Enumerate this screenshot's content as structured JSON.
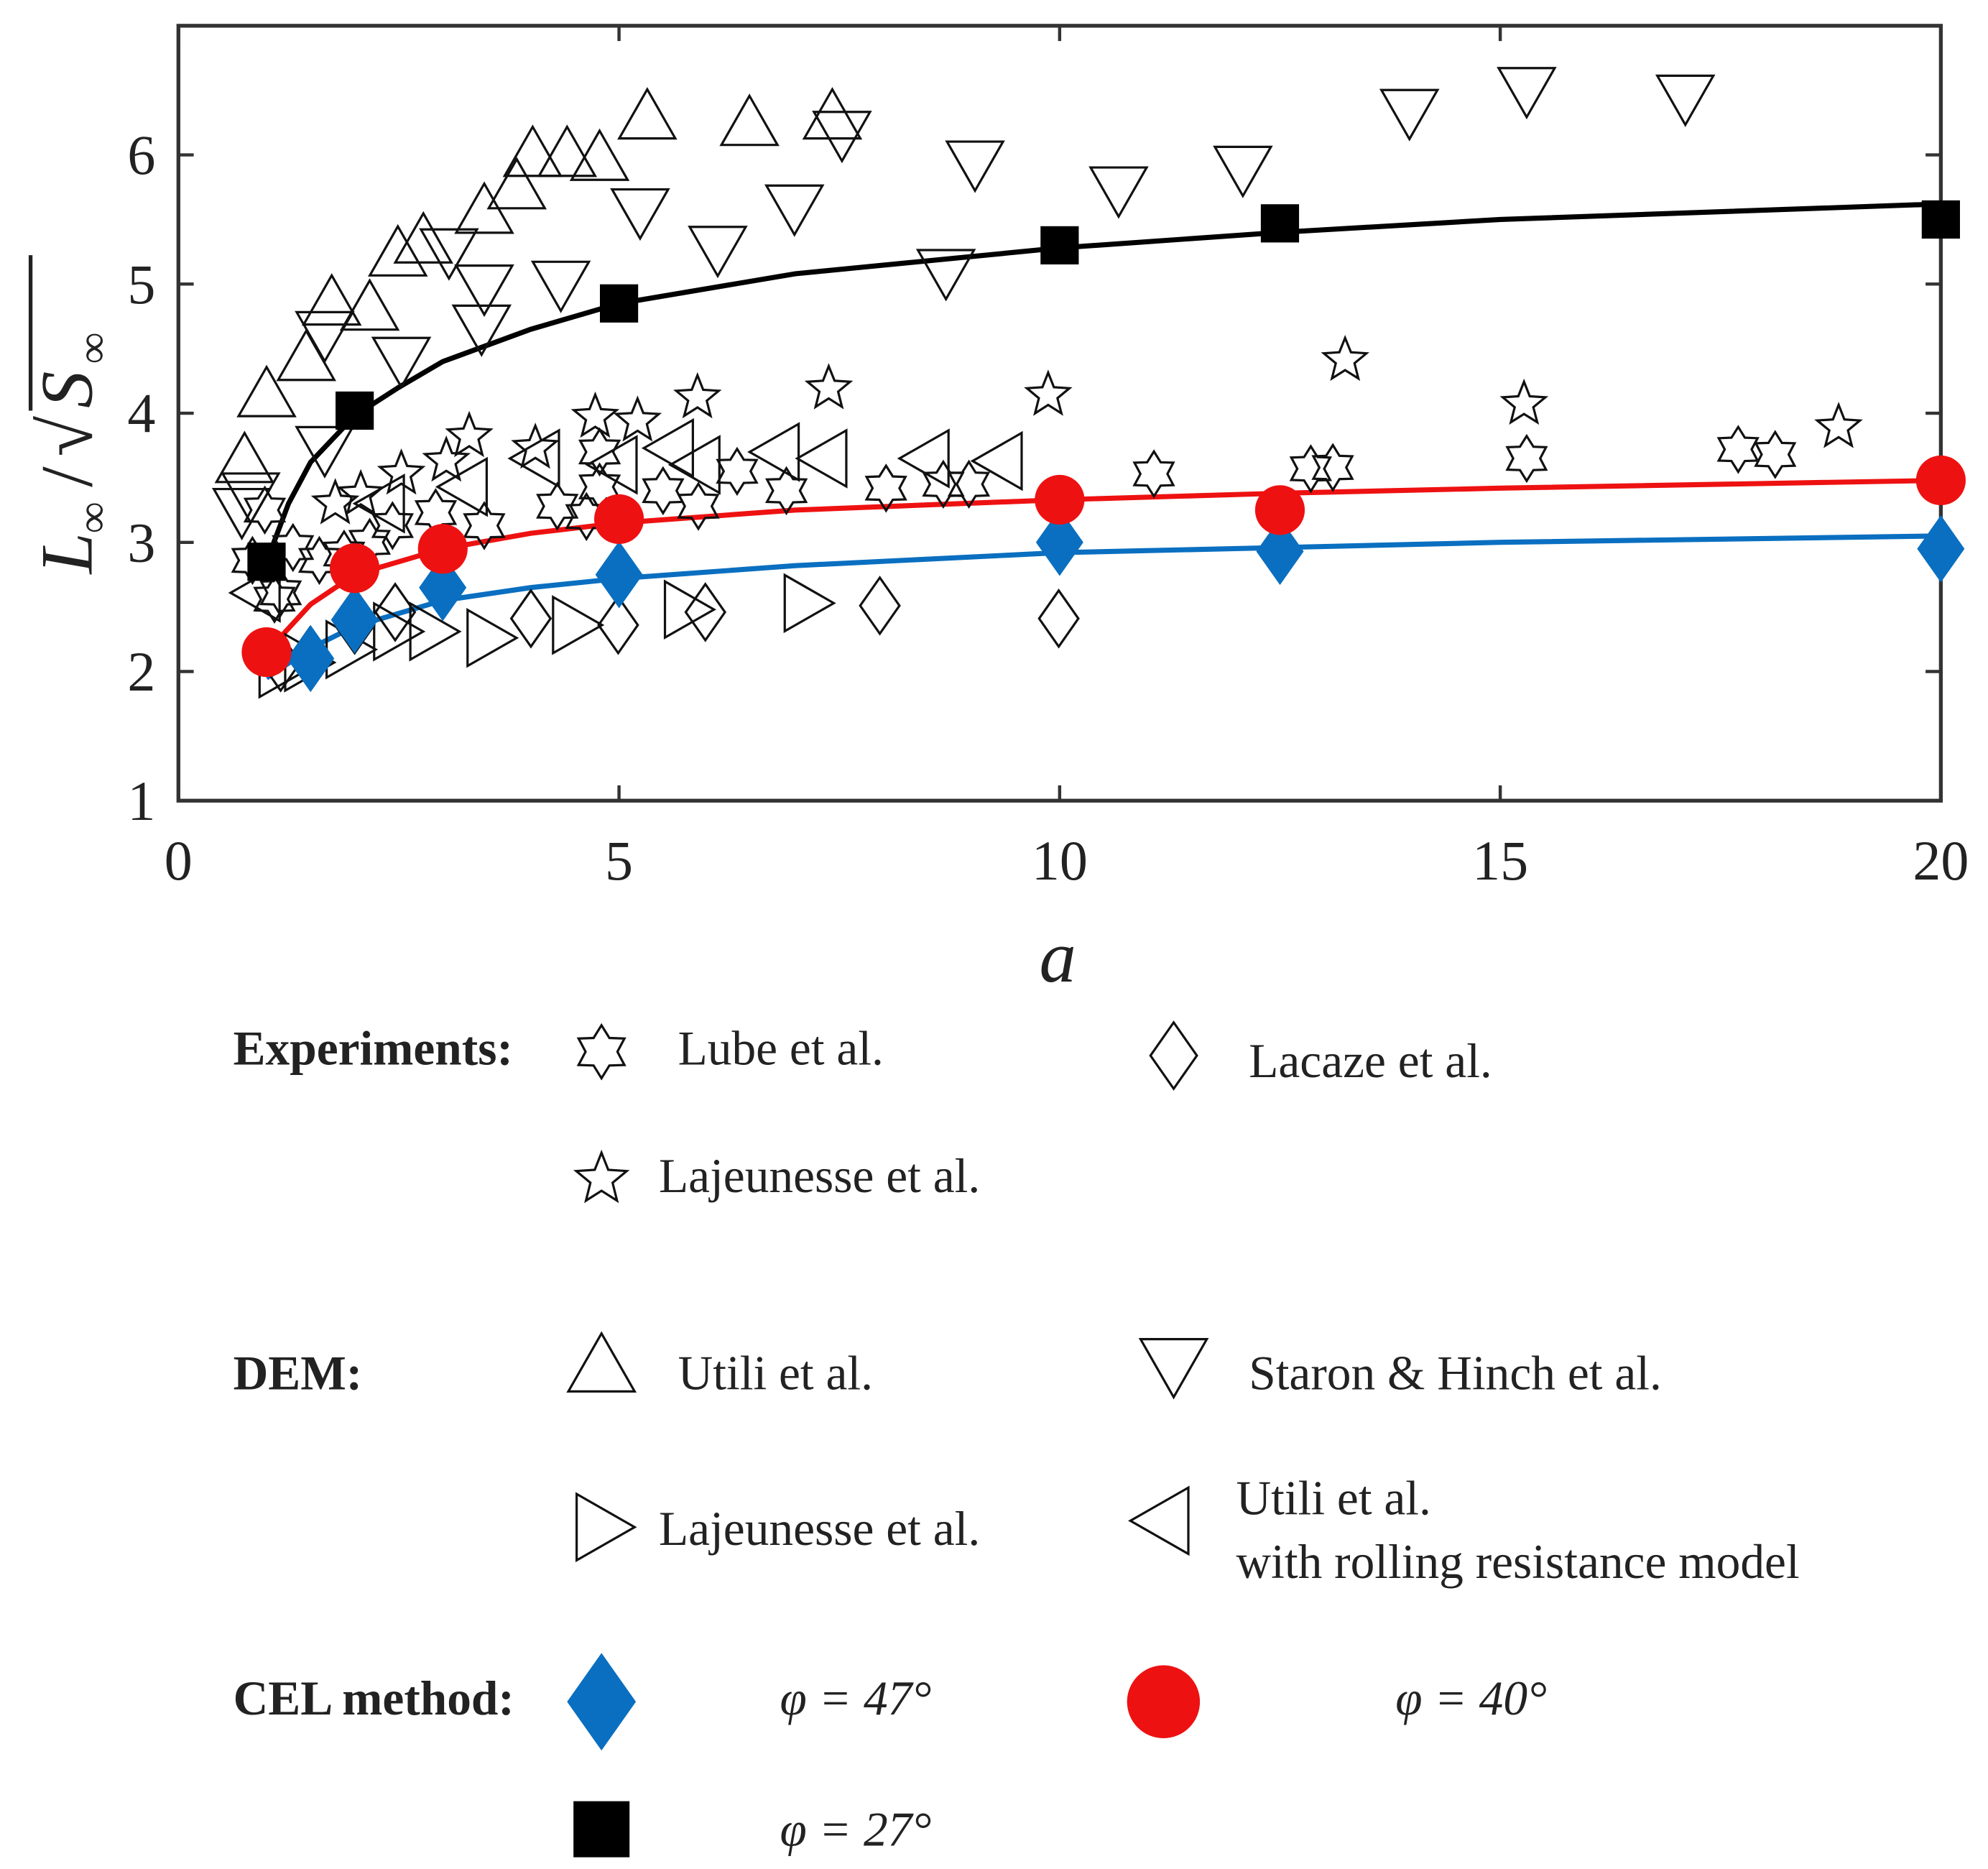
{
  "chart_data": {
    "type": "scatter",
    "xlabel": "a",
    "ylabel": "L∞ / √S∞",
    "xlim": [
      0,
      20
    ],
    "ylim": [
      1,
      7
    ],
    "xticks": [
      0,
      5,
      10,
      15,
      20
    ],
    "yticks": [
      1,
      2,
      3,
      4,
      5,
      6
    ],
    "xtick_labels": [
      "0",
      "5",
      "10",
      "15",
      "20"
    ],
    "ytick_labels": [
      "1",
      "2",
      "3",
      "4",
      "5",
      "6"
    ],
    "grid": false,
    "legend_placement": "below",
    "series": [
      {
        "name": "Lube et al.",
        "group": "Experiments",
        "marker": "hexagram",
        "color": "#000000",
        "x": [
          12.85,
          13.1,
          11.07,
          15.3,
          17.7,
          18.12,
          6.34,
          5.5,
          5.9,
          6.9,
          8.03,
          8.68,
          8.97,
          4.3,
          4.63,
          3.47,
          2.92,
          2.43,
          4.78,
          4.78,
          1.3,
          1.6,
          1.88,
          2.17,
          0.98,
          1.16,
          1.09,
          0.84
        ],
        "y": [
          3.57,
          3.58,
          3.53,
          3.65,
          3.72,
          3.68,
          3.55,
          3.4,
          3.28,
          3.4,
          3.42,
          3.45,
          3.45,
          3.28,
          3.2,
          3.13,
          3.23,
          3.13,
          3.7,
          3.43,
          2.96,
          2.86,
          2.91,
          3.0,
          3.25,
          2.61,
          2.56,
          2.86
        ]
      },
      {
        "name": "Lacaze et al.",
        "group": "Experiments",
        "marker": "diamond",
        "color": "#000000",
        "x": [
          1.16,
          1.49,
          2.0,
          2.46,
          4.0,
          4.99,
          5.98,
          7.96,
          9.99
        ],
        "y": [
          2.07,
          2.12,
          2.36,
          2.46,
          2.41,
          2.36,
          2.46,
          2.51,
          2.41
        ]
      },
      {
        "name": "Lajeunesse et al.",
        "group": "Experiments",
        "marker": "star5",
        "color": "#000000",
        "x": [
          5.89,
          7.38,
          9.87,
          13.24,
          15.27,
          18.84,
          3.3,
          4.73,
          5.21,
          4.05,
          2.53,
          3.04,
          1.78,
          2.07
        ],
        "y": [
          4.12,
          4.19,
          4.14,
          4.41,
          4.07,
          3.89,
          3.82,
          3.97,
          3.94,
          3.73,
          3.53,
          3.63,
          3.3,
          3.37
        ]
      },
      {
        "name": "Utili et al.",
        "group": "DEM",
        "marker": "triangle-up",
        "color": "#000000",
        "x": [
          0.75,
          1.0,
          1.45,
          1.74,
          2.17,
          2.49,
          2.78,
          3.47,
          3.84,
          4.02,
          4.41,
          4.78,
          5.32,
          6.48,
          7.42
        ],
        "y": [
          3.63,
          4.14,
          4.42,
          4.85,
          4.81,
          5.23,
          5.33,
          5.56,
          5.75,
          6.0,
          6.0,
          5.97,
          6.29,
          6.24,
          6.29
        ]
      },
      {
        "name": "Staron & Hinch et al.",
        "group": "DEM",
        "marker": "triangle-down",
        "color": "#000000",
        "x": [
          0.72,
          0.82,
          1.66,
          1.66,
          2.53,
          3.07,
          3.47,
          3.44,
          4.34,
          5.24,
          6.12,
          6.99,
          7.53,
          9.04,
          8.71,
          10.67,
          12.08,
          13.97,
          15.3,
          17.1
        ],
        "y": [
          3.25,
          3.37,
          4.62,
          3.73,
          4.42,
          5.26,
          4.98,
          4.67,
          5.01,
          5.57,
          5.28,
          5.6,
          6.17,
          5.94,
          5.1,
          5.74,
          5.9,
          6.34,
          6.51,
          6.45
        ]
      },
      {
        "name": "Lajeunesse et al.",
        "group": "DEM",
        "marker": "triangle-right",
        "color": "#000000",
        "x": [
          1.16,
          1.45,
          1.92,
          2.46,
          2.87,
          3.52,
          4.49,
          5.76,
          7.12
        ],
        "y": [
          2.02,
          2.07,
          2.17,
          2.31,
          2.31,
          2.26,
          2.36,
          2.48,
          2.53
        ]
      },
      {
        "name": "Utili et al. with rolling resistance model",
        "group": "DEM",
        "marker": "triangle-left",
        "color": "#000000",
        "x": [
          0.91,
          2.32,
          3.26,
          4.96,
          5.6,
          5.9,
          4.08,
          6.8,
          7.34,
          8.5,
          9.33
        ],
        "y": [
          2.61,
          3.3,
          3.43,
          3.6,
          3.73,
          3.6,
          3.65,
          3.7,
          3.65,
          3.65,
          3.63
        ]
      },
      {
        "name": "φ = 47°",
        "group": "CEL method",
        "marker": "filled-diamond",
        "color": "#0a6fc0",
        "x": [
          1.5,
          2,
          3,
          5,
          10,
          12.5,
          20
        ],
        "y": [
          2.1,
          2.4,
          2.65,
          2.75,
          3.0,
          2.93,
          2.95
        ],
        "fit_x": [
          1,
          1.5,
          2,
          3,
          4,
          5,
          7,
          10,
          12.5,
          15,
          20
        ],
        "fit_y": [
          1.95,
          2.18,
          2.35,
          2.55,
          2.65,
          2.72,
          2.82,
          2.92,
          2.96,
          3.0,
          3.05
        ]
      },
      {
        "name": "φ = 40°",
        "group": "CEL method",
        "marker": "filled-circle",
        "color": "#ee1111",
        "x": [
          1,
          2,
          3,
          5,
          10,
          12.5,
          20
        ],
        "y": [
          2.15,
          2.8,
          2.95,
          3.18,
          3.33,
          3.25,
          3.48
        ],
        "fit_x": [
          1,
          1.5,
          2,
          3,
          4,
          5,
          7,
          10,
          12.5,
          15,
          20
        ],
        "fit_y": [
          2.15,
          2.52,
          2.75,
          2.95,
          3.07,
          3.15,
          3.25,
          3.33,
          3.38,
          3.42,
          3.48
        ]
      },
      {
        "name": "φ = 27°",
        "group": "CEL method",
        "marker": "filled-square",
        "color": "#000000",
        "x": [
          1,
          2,
          5,
          10,
          12.5,
          20
        ],
        "y": [
          2.85,
          4.02,
          4.85,
          5.3,
          5.47,
          5.5
        ],
        "fit_x": [
          1,
          1.25,
          1.5,
          2,
          2.5,
          3,
          4,
          5,
          7,
          10,
          12.5,
          15,
          20
        ],
        "fit_y": [
          2.85,
          3.3,
          3.62,
          3.98,
          4.2,
          4.4,
          4.65,
          4.85,
          5.08,
          5.28,
          5.4,
          5.5,
          5.62
        ]
      }
    ]
  },
  "legend": {
    "experiments_heading": "Experiments:",
    "lube": "Lube et al.",
    "lacaze": "Lacaze et al.",
    "lajeunesse_exp": "Lajeunesse et al.",
    "dem_heading": "DEM:",
    "utili": "Utili et al.",
    "staron": "Staron & Hinch et al.",
    "lajeunesse_dem": "Lajeunesse et al.",
    "utili_rr_line1": "Utili et al.",
    "utili_rr_line2": "with rolling resistance model",
    "cel_heading": "CEL method:",
    "phi47": "φ = 47°",
    "phi40": "φ = 40°",
    "phi27": "φ = 27°"
  },
  "axes": {
    "xlabel": "a",
    "ylabel_L": "L",
    "ylabel_sub": "∞",
    "ylabel_slash": "/",
    "ylabel_sqrt": "√",
    "ylabel_S": "S"
  }
}
